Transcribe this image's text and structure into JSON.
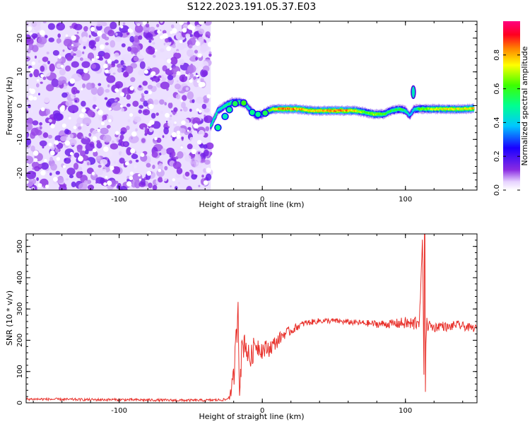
{
  "title": "S122.2023.191.05.37.E03",
  "colors": {
    "snr_line": "#e8302a",
    "axis": "#000000",
    "background": "#ffffff"
  },
  "chart_data": [
    {
      "type": "heatmap",
      "xlabel": "Height of straight line (km)",
      "ylabel": "Frequency (Hz)",
      "xlim": [
        -165,
        150
      ],
      "ylim": [
        -25,
        25
      ],
      "x_ticks": [
        -100,
        0,
        100
      ],
      "y_ticks": [
        -20,
        -10,
        0,
        10,
        20
      ],
      "x_tick_labels": [
        "-100",
        "0",
        "100"
      ],
      "y_tick_labels": [
        "-20",
        "-10",
        "0",
        "10",
        "20"
      ],
      "colorbar": {
        "label": "Normalized spectral amplitude",
        "range": [
          0.0,
          1.0
        ],
        "ticks": [
          0.0,
          0.2,
          0.4,
          0.6,
          0.8
        ],
        "tick_labels": [
          "0.0",
          "0.2",
          "0.4",
          "0.6",
          "0.8"
        ],
        "colormap": "rainbow (white-violet-blue-cyan-green-yellow-orange-red-magenta)"
      },
      "noise_region_x": [
        -165,
        -36
      ],
      "signal_trace": {
        "x": [
          -36,
          -31,
          -26,
          -21,
          -16,
          -12,
          -8,
          -4,
          0,
          4,
          8,
          15,
          25,
          35,
          45,
          55,
          65,
          72,
          78,
          85,
          90,
          96,
          100,
          103,
          106,
          110,
          120,
          130,
          140,
          148
        ],
        "freq": [
          -6,
          -1.5,
          0,
          1,
          1,
          0.5,
          -1.5,
          -3,
          -2.5,
          -1.5,
          -1,
          -1,
          -1,
          -1.5,
          -1.5,
          -1.5,
          -1.5,
          -2,
          -2.5,
          -2.5,
          -1.5,
          -1,
          -1.5,
          -3,
          -1,
          -1,
          -1,
          -1,
          -1,
          -0.8
        ],
        "amplitude": [
          0.5,
          0.45,
          0.5,
          0.55,
          0.6,
          0.5,
          0.4,
          0.45,
          0.5,
          0.6,
          0.75,
          0.85,
          0.8,
          0.75,
          0.8,
          0.85,
          0.75,
          0.6,
          0.7,
          0.6,
          0.55,
          0.6,
          0.5,
          0.35,
          0.45,
          0.6,
          0.7,
          0.75,
          0.7,
          0.8
        ]
      },
      "spike": {
        "x": 105.5,
        "freq": 4,
        "amplitude": 0.45
      }
    },
    {
      "type": "line",
      "xlabel": "Height of straight line (km)",
      "ylabel": "SNR (10 * v/v)",
      "xlim": [
        -165,
        150
      ],
      "ylim": [
        0,
        540
      ],
      "x_ticks": [
        -100,
        0,
        100
      ],
      "y_ticks": [
        0,
        100,
        200,
        300,
        400,
        500
      ],
      "x_tick_labels": [
        "-100",
        "0",
        "100"
      ],
      "y_tick_labels": [
        "0",
        "100",
        "200",
        "300",
        "400",
        "500"
      ],
      "series": [
        {
          "x": [
            -165,
            -140,
            -120,
            -100,
            -80,
            -60,
            -40,
            -25,
            -22,
            -20,
            -18,
            -17,
            -16,
            -14,
            -12,
            -10,
            -8,
            -5,
            0,
            5,
            10,
            15,
            20,
            25,
            30,
            40,
            50,
            60,
            70,
            80,
            90,
            100,
            105,
            110,
            112,
            113,
            114,
            115,
            118,
            120,
            125,
            130,
            135,
            140,
            145,
            150
          ],
          "y": [
            12,
            11,
            10,
            10,
            9,
            8,
            8,
            10,
            30,
            80,
            210,
            330,
            60,
            180,
            200,
            150,
            140,
            190,
            170,
            175,
            195,
            220,
            230,
            245,
            255,
            262,
            262,
            258,
            255,
            252,
            252,
            255,
            250,
            270,
            540,
            40,
            190,
            250,
            245,
            240,
            248,
            240,
            250,
            245,
            240,
            238
          ],
          "noise_amplitude": [
            4,
            4,
            4,
            4,
            4,
            4,
            4,
            4,
            20,
            40,
            60,
            60,
            50,
            50,
            45,
            40,
            40,
            35,
            30,
            28,
            22,
            18,
            14,
            12,
            10,
            9,
            9,
            9,
            10,
            12,
            14,
            20,
            25,
            30,
            0,
            0,
            40,
            22,
            18,
            15,
            15,
            14,
            14,
            14,
            13,
            12
          ]
        }
      ]
    }
  ]
}
